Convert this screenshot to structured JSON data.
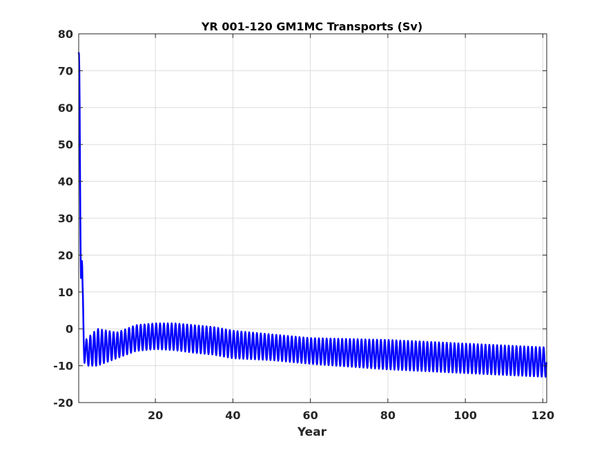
{
  "chart_data": {
    "type": "line",
    "title": "YR 001-120 GM1MC Transports (Sv)",
    "xlabel": "Year",
    "ylabel": "",
    "xlim": [
      0.2,
      121
    ],
    "ylim": [
      -20,
      80
    ],
    "grid": true,
    "xticks": [
      20,
      40,
      60,
      80,
      100,
      120
    ],
    "yticks": [
      80,
      70,
      60,
      50,
      40,
      30,
      20,
      10,
      0,
      -10,
      -20
    ],
    "series": [
      {
        "name": "",
        "color": "#0000ff",
        "seasonal_cycle": "12 samples per year",
        "envelope_points": [
          {
            "year": 0.2,
            "low": 75,
            "high": 75
          },
          {
            "year": 0.5,
            "low": 40,
            "high": 75
          },
          {
            "year": 0.8,
            "low": 10,
            "high": 43
          },
          {
            "year": 1.2,
            "low": -8,
            "high": 12
          },
          {
            "year": 2.0,
            "low": -10,
            "high": -3
          },
          {
            "year": 5,
            "low": -10,
            "high": 0
          },
          {
            "year": 10,
            "low": -8,
            "high": -1
          },
          {
            "year": 15,
            "low": -6,
            "high": 1
          },
          {
            "year": 20,
            "low": -5.5,
            "high": 1.5
          },
          {
            "year": 25,
            "low": -5.8,
            "high": 1.5
          },
          {
            "year": 30,
            "low": -6.5,
            "high": 1
          },
          {
            "year": 35,
            "low": -7,
            "high": 0.5
          },
          {
            "year": 40,
            "low": -8,
            "high": -0.5
          },
          {
            "year": 50,
            "low": -8.5,
            "high": -1.5
          },
          {
            "year": 60,
            "low": -9.5,
            "high": -2.5
          },
          {
            "year": 80,
            "low": -11,
            "high": -3
          },
          {
            "year": 100,
            "low": -12,
            "high": -4
          },
          {
            "year": 120,
            "low": -13,
            "high": -5
          },
          {
            "year": 121,
            "low": -13,
            "high": -5
          }
        ]
      }
    ]
  }
}
